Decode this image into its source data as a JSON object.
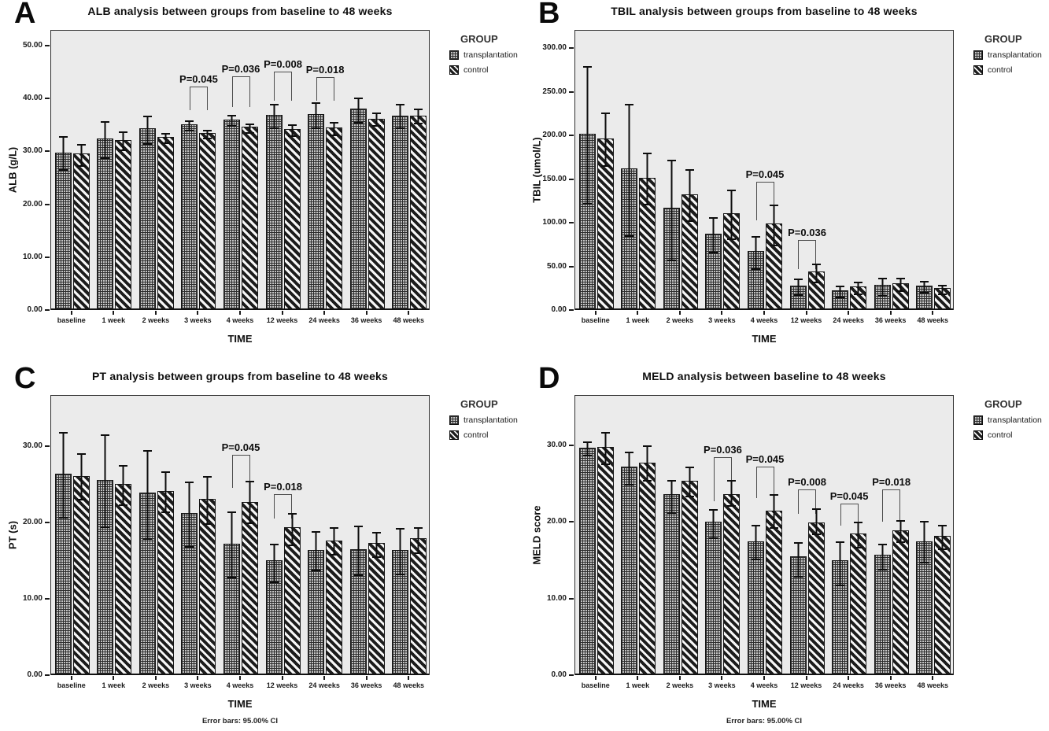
{
  "figure": {
    "colors": {
      "page_bg": "#ffffff",
      "plot_bg": "#ebebeb",
      "ink": "#111111"
    },
    "error_bar_note": "Error bars: 95.00% CI",
    "legend_title": "GROUP",
    "group_names": [
      "transplantation",
      "control"
    ]
  },
  "chart_data": [
    {
      "panel_label": "A",
      "type": "bar",
      "title": "ALB analysis between groups from baseline to 48 weeks",
      "xlabel": "TIME",
      "ylabel": "ALB (g/L)",
      "legend_title": "GROUP",
      "footer": "",
      "ylim": [
        0,
        53
      ],
      "yticks": [
        0,
        10,
        20,
        30,
        40,
        50
      ],
      "ytick_labels": [
        "0.00",
        "10.00",
        "20.00",
        "30.00",
        "40.00",
        "50.00"
      ],
      "categories": [
        "baseline",
        "1 week",
        "2 weeks",
        "3 weeks",
        "4 weeks",
        "12 weeks",
        "24 weeks",
        "36 weeks",
        "48 weeks"
      ],
      "series": [
        {
          "name": "transplantation",
          "pattern": "grid",
          "values": [
            29.7,
            32.3,
            34.2,
            35.0,
            35.9,
            36.8,
            36.9,
            37.9,
            36.7
          ],
          "ci_lo": [
            26.5,
            28.7,
            31.4,
            33.9,
            34.8,
            34.4,
            34.4,
            35.4,
            34.4
          ],
          "ci_hi": [
            33.0,
            35.9,
            36.9,
            36.1,
            37.0,
            39.2,
            39.5,
            40.4,
            39.2
          ]
        },
        {
          "name": "control",
          "pattern": "diagonal-stripes",
          "values": [
            29.5,
            32.0,
            32.6,
            33.4,
            34.5,
            34.1,
            34.4,
            36.1,
            36.7
          ],
          "ci_lo": [
            27.3,
            30.2,
            31.5,
            32.5,
            33.5,
            32.9,
            33.0,
            34.8,
            35.3
          ],
          "ci_hi": [
            31.6,
            33.9,
            33.7,
            34.3,
            35.5,
            35.3,
            35.8,
            37.5,
            38.2
          ]
        }
      ],
      "pvalue_brackets": [
        {
          "category": "3 weeks",
          "label": "P=0.045",
          "y_top": 42.5,
          "y_bottom": 38.0
        },
        {
          "category": "4 weeks",
          "label": "P=0.036",
          "y_top": 44.3,
          "y_bottom": 38.6
        },
        {
          "category": "12 weeks",
          "label": "P=0.008",
          "y_top": 45.3,
          "y_bottom": 39.8
        },
        {
          "category": "24 weeks",
          "label": "P=0.018",
          "y_top": 44.2,
          "y_bottom": 39.8
        }
      ]
    },
    {
      "panel_label": "B",
      "type": "bar",
      "title": "TBIL analysis between groups from baseline to 48 weeks",
      "xlabel": "TIME",
      "ylabel": "TBIL (umol/L)",
      "legend_title": "GROUP",
      "footer": "",
      "ylim": [
        0,
        321
      ],
      "yticks": [
        0,
        50,
        100,
        150,
        200,
        250,
        300
      ],
      "ytick_labels": [
        "0.00",
        "50.00",
        "100.00",
        "150.00",
        "200.00",
        "250.00",
        "300.00"
      ],
      "categories": [
        "baseline",
        "1 week",
        "2 weeks",
        "3 weeks",
        "4 weeks",
        "12 weeks",
        "24 weeks",
        "36 weeks",
        "48 weeks"
      ],
      "series": [
        {
          "name": "transplantation",
          "pattern": "grid",
          "values": [
            201,
            161,
            116,
            87,
            67,
            27,
            22,
            28,
            27
          ],
          "ci_lo": [
            122,
            85,
            57,
            66,
            47,
            17,
            14,
            16,
            20
          ],
          "ci_hi": [
            280,
            237,
            173,
            107,
            86,
            37,
            29,
            38,
            34
          ]
        },
        {
          "name": "control",
          "pattern": "diagonal-stripes",
          "values": [
            196,
            151,
            132,
            110,
            98,
            43,
            26,
            30,
            24
          ],
          "ci_lo": [
            165,
            121,
            102,
            81,
            74,
            32,
            18,
            22,
            18
          ],
          "ci_hi": [
            227,
            181,
            162,
            139,
            122,
            54,
            33,
            38,
            30
          ]
        }
      ],
      "pvalue_brackets": [
        {
          "category": "4 weeks",
          "label": "P=0.045",
          "y_top": 148,
          "y_bottom": 104
        },
        {
          "category": "12 weeks",
          "label": "P=0.036",
          "y_top": 81,
          "y_bottom": 48
        }
      ]
    },
    {
      "panel_label": "C",
      "type": "bar",
      "title": "PT analysis between groups from baseline to 48 weeks",
      "xlabel": "TIME",
      "ylabel": "PT (s)",
      "legend_title": "GROUP",
      "footer": "Error bars: 95.00% CI",
      "ylim": [
        0,
        36.7
      ],
      "yticks": [
        0,
        10,
        20,
        30
      ],
      "ytick_labels": [
        "0.00",
        "10.00",
        "20.00",
        "30.00"
      ],
      "categories": [
        "baseline",
        "1 week",
        "2 weeks",
        "3 weeks",
        "4 weeks",
        "12 weeks",
        "24 weeks",
        "36 weeks",
        "48 weeks"
      ],
      "series": [
        {
          "name": "transplantation",
          "pattern": "grid",
          "values": [
            26.3,
            25.5,
            23.8,
            21.1,
            17.1,
            14.9,
            16.3,
            16.4,
            16.3
          ],
          "ci_lo": [
            20.6,
            19.4,
            17.8,
            16.8,
            12.8,
            12.2,
            13.7,
            13.1,
            13.2
          ],
          "ci_hi": [
            32.0,
            31.7,
            29.6,
            25.5,
            21.5,
            17.3,
            19.0,
            19.7,
            19.4
          ]
        },
        {
          "name": "control",
          "pattern": "diagonal-stripes",
          "values": [
            26.0,
            25.0,
            24.0,
            23.0,
            22.6,
            19.3,
            17.5,
            17.2,
            17.8
          ],
          "ci_lo": [
            23.0,
            22.3,
            21.3,
            19.8,
            19.9,
            17.0,
            15.8,
            15.5,
            16.0
          ],
          "ci_hi": [
            29.2,
            27.6,
            26.8,
            26.2,
            25.6,
            21.3,
            19.5,
            18.9,
            19.5
          ]
        }
      ],
      "pvalue_brackets": [
        {
          "category": "4 weeks",
          "label": "P=0.045",
          "y_top": 29.0,
          "y_bottom": 24.6
        },
        {
          "category": "12 weeks",
          "label": "P=0.018",
          "y_top": 23.8,
          "y_bottom": 20.6
        }
      ]
    },
    {
      "panel_label": "D",
      "type": "bar",
      "title": "MELD analysis between baseline to 48 weeks",
      "xlabel": "TIME",
      "ylabel": "MELD score",
      "legend_title": "GROUP",
      "footer": "Error bars: 95.00% CI",
      "ylim": [
        0,
        36.6
      ],
      "yticks": [
        0,
        10,
        20,
        30
      ],
      "ytick_labels": [
        "0.00",
        "10.00",
        "20.00",
        "30.00"
      ],
      "categories": [
        "baseline",
        "1 week",
        "2 weeks",
        "3 weeks",
        "4 weeks",
        "12 weeks",
        "24 weeks",
        "36 weeks",
        "48 weeks"
      ],
      "series": [
        {
          "name": "transplantation",
          "pattern": "grid",
          "values": [
            29.6,
            27.1,
            23.5,
            19.9,
            17.4,
            15.4,
            14.9,
            15.6,
            17.4
          ],
          "ci_lo": [
            28.7,
            24.9,
            21.2,
            17.9,
            15.1,
            12.9,
            11.7,
            13.8,
            14.7
          ],
          "ci_hi": [
            30.6,
            29.3,
            25.6,
            21.8,
            19.7,
            17.5,
            17.6,
            17.3,
            20.3
          ]
        },
        {
          "name": "control",
          "pattern": "diagonal-stripes",
          "values": [
            29.7,
            27.7,
            25.3,
            23.5,
            21.4,
            19.8,
            18.4,
            18.8,
            18.1
          ],
          "ci_lo": [
            27.6,
            25.4,
            23.3,
            22.1,
            19.2,
            18.4,
            16.7,
            17.4,
            16.5
          ],
          "ci_hi": [
            31.9,
            30.1,
            27.3,
            25.6,
            23.7,
            21.9,
            20.1,
            20.4,
            19.7
          ]
        }
      ],
      "pvalue_brackets": [
        {
          "category": "3 weeks",
          "label": "P=0.036",
          "y_top": 28.6,
          "y_bottom": 22.8
        },
        {
          "category": "4 weeks",
          "label": "P=0.045",
          "y_top": 27.3,
          "y_bottom": 23.2
        },
        {
          "category": "12 weeks",
          "label": "P=0.008",
          "y_top": 24.4,
          "y_bottom": 21.2
        },
        {
          "category": "24 weeks",
          "label": "P=0.045",
          "y_top": 22.5,
          "y_bottom": 19.6
        },
        {
          "category": "36 weeks",
          "label": "P=0.018",
          "y_top": 24.4,
          "y_bottom": 20.2
        }
      ]
    }
  ]
}
